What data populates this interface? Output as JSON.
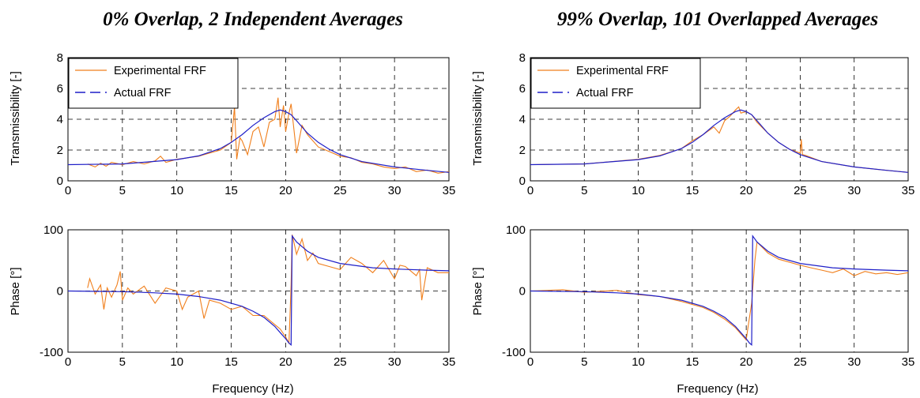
{
  "colors": {
    "experimental": "#f07f1c",
    "actual": "#1f1fc8",
    "grid": "#000000"
  },
  "chart_data": [
    {
      "id": "tr-left",
      "type": "line",
      "title": "0% Overlap, 2 Independent Averages",
      "xlabel": "",
      "ylabel": "Transmissibility [-]",
      "xlim": [
        0,
        35
      ],
      "ylim": [
        0,
        8
      ],
      "xticks": [
        0,
        5,
        10,
        15,
        20,
        25,
        30,
        35
      ],
      "yticks": [
        0,
        2,
        4,
        6,
        8
      ],
      "xtick_labels": [
        "0",
        "5",
        "10",
        "15",
        "20",
        "25",
        "30",
        "35"
      ],
      "ytick_labels": [
        "0",
        "2",
        "4",
        "6",
        "8"
      ],
      "grid": true,
      "legend": "top-left",
      "series": [
        {
          "name": "Experimental FRF",
          "style": "solid",
          "color": "#f07f1c",
          "x": [
            1.8,
            2.5,
            3,
            3.5,
            4,
            5,
            6,
            7,
            8,
            8.5,
            9,
            10,
            11,
            12,
            13,
            14,
            15,
            15.3,
            15.5,
            15.8,
            16,
            16.5,
            17,
            17.5,
            18,
            18.5,
            19,
            19.3,
            19.5,
            19.8,
            20,
            20.3,
            20.5,
            21,
            21.5,
            22,
            23,
            24,
            25,
            26,
            27,
            28,
            29,
            30,
            31,
            32,
            33,
            34,
            35
          ],
          "y": [
            1.1,
            0.9,
            1.15,
            0.95,
            1.2,
            1.05,
            1.25,
            1.1,
            1.3,
            1.6,
            1.2,
            1.4,
            1.5,
            1.6,
            1.8,
            2.0,
            2.5,
            4.8,
            1.4,
            2.8,
            2.6,
            1.7,
            3.2,
            3.5,
            2.2,
            3.8,
            4.0,
            5.4,
            3.5,
            4.9,
            3.2,
            4.4,
            5.0,
            1.8,
            3.6,
            3.0,
            2.2,
            1.9,
            1.6,
            1.5,
            1.2,
            1.1,
            0.9,
            0.8,
            0.9,
            0.6,
            0.7,
            0.5,
            0.6
          ]
        },
        {
          "name": "Actual FRF",
          "style": "dashed",
          "color": "#1f1fc8",
          "x": [
            0,
            5,
            10,
            12,
            14,
            15,
            16,
            17,
            18,
            19,
            19.5,
            20,
            20.5,
            21,
            22,
            23,
            24,
            25,
            27,
            30,
            33,
            35
          ],
          "y": [
            1.05,
            1.1,
            1.38,
            1.62,
            2.1,
            2.5,
            3.0,
            3.6,
            4.1,
            4.5,
            4.6,
            4.5,
            4.3,
            3.9,
            3.1,
            2.5,
            2.05,
            1.7,
            1.25,
            0.9,
            0.68,
            0.55
          ]
        }
      ]
    },
    {
      "id": "tr-right",
      "type": "line",
      "title": "99% Overlap, 101 Overlapped Averages",
      "xlabel": "",
      "ylabel": "Transmissibility [-]",
      "xlim": [
        0,
        35
      ],
      "ylim": [
        0,
        8
      ],
      "xticks": [
        0,
        5,
        10,
        15,
        20,
        25,
        30,
        35
      ],
      "yticks": [
        0,
        2,
        4,
        6,
        8
      ],
      "xtick_labels": [
        "0",
        "5",
        "10",
        "15",
        "20",
        "25",
        "30",
        "35"
      ],
      "ytick_labels": [
        "0",
        "2",
        "4",
        "6",
        "8"
      ],
      "grid": true,
      "legend": "top-left",
      "series": [
        {
          "name": "Experimental FRF",
          "style": "solid",
          "color": "#f07f1c",
          "x": [
            0,
            5,
            10,
            12,
            14,
            15,
            16,
            17,
            17.5,
            18,
            18.5,
            19,
            19.3,
            19.5,
            20,
            20.5,
            21,
            22,
            23,
            24,
            25,
            25.1,
            25.2,
            25.5,
            27,
            30,
            33,
            35
          ],
          "y": [
            1.05,
            1.1,
            1.4,
            1.65,
            2.1,
            2.6,
            3.0,
            3.5,
            3.1,
            3.9,
            4.2,
            4.6,
            4.8,
            4.4,
            4.5,
            4.3,
            3.8,
            3.1,
            2.5,
            2.05,
            1.8,
            2.7,
            1.7,
            1.65,
            1.25,
            0.9,
            0.68,
            0.55
          ]
        },
        {
          "name": "Actual FRF",
          "style": "dashed",
          "color": "#1f1fc8",
          "x": [
            0,
            5,
            10,
            12,
            14,
            15,
            16,
            17,
            18,
            19,
            19.5,
            20,
            20.5,
            21,
            22,
            23,
            24,
            25,
            27,
            30,
            33,
            35
          ],
          "y": [
            1.05,
            1.1,
            1.38,
            1.62,
            2.1,
            2.5,
            3.0,
            3.6,
            4.1,
            4.5,
            4.6,
            4.5,
            4.3,
            3.9,
            3.1,
            2.5,
            2.05,
            1.7,
            1.25,
            0.9,
            0.68,
            0.55
          ]
        }
      ]
    },
    {
      "id": "ph-left",
      "type": "line",
      "title": "",
      "xlabel": "Frequency (Hz)",
      "ylabel": "Phase [°]",
      "xlim": [
        0,
        35
      ],
      "ylim": [
        -100,
        100
      ],
      "xticks": [
        0,
        5,
        10,
        15,
        20,
        25,
        30,
        35
      ],
      "yticks": [
        -100,
        0,
        100
      ],
      "xtick_labels": [
        "0",
        "5",
        "10",
        "15",
        "20",
        "25",
        "30",
        "35"
      ],
      "ytick_labels": [
        "-100",
        "0",
        "100"
      ],
      "grid": true,
      "legend": "none",
      "series": [
        {
          "name": "Experimental FRF",
          "style": "solid",
          "color": "#f07f1c",
          "x": [
            1.8,
            2,
            2.5,
            3,
            3.3,
            3.6,
            4,
            4.5,
            4.8,
            5,
            5.5,
            6,
            7,
            8,
            9,
            10,
            10.5,
            11,
            12,
            12.5,
            13,
            14,
            15,
            16,
            17,
            18,
            19,
            19.5,
            20,
            20.3,
            20.5,
            20.6,
            21,
            21.5,
            22,
            22.5,
            23,
            24,
            25,
            26,
            27,
            28,
            29,
            30,
            30.5,
            31,
            32,
            32.3,
            32.5,
            33,
            34,
            35
          ],
          "y": [
            5,
            20,
            -5,
            10,
            -30,
            5,
            -10,
            10,
            32,
            -15,
            5,
            -5,
            8,
            -20,
            5,
            0,
            -30,
            -10,
            0,
            -45,
            -15,
            -20,
            -30,
            -25,
            -40,
            -40,
            -55,
            -62,
            -75,
            -85,
            10,
            92,
            60,
            85,
            50,
            62,
            45,
            40,
            35,
            55,
            45,
            30,
            50,
            20,
            42,
            40,
            25,
            35,
            -15,
            38,
            30,
            30
          ]
        },
        {
          "name": "Actual FRF",
          "style": "dashed",
          "color": "#1f1fc8",
          "x": [
            0,
            5,
            8,
            10,
            12,
            14,
            16,
            17,
            18,
            19,
            19.5,
            20,
            20.3,
            20.5,
            20.6,
            21,
            22,
            23,
            25,
            28,
            30,
            33,
            35
          ],
          "y": [
            0,
            -1,
            -3,
            -5,
            -9,
            -15,
            -25,
            -33,
            -43,
            -58,
            -68,
            -78,
            -85,
            -88,
            90,
            80,
            65,
            55,
            45,
            38,
            36,
            34,
            33
          ]
        }
      ]
    },
    {
      "id": "ph-right",
      "type": "line",
      "title": "",
      "xlabel": "Frequency (Hz)",
      "ylabel": "Phase [°]",
      "xlim": [
        0,
        35
      ],
      "ylim": [
        -100,
        100
      ],
      "xticks": [
        0,
        5,
        10,
        15,
        20,
        25,
        30,
        35
      ],
      "yticks": [
        -100,
        0,
        100
      ],
      "xtick_labels": [
        "0",
        "5",
        "10",
        "15",
        "20",
        "25",
        "30",
        "35"
      ],
      "ytick_labels": [
        "-100",
        "0",
        "100"
      ],
      "grid": true,
      "legend": "none",
      "series": [
        {
          "name": "Experimental FRF",
          "style": "solid",
          "color": "#f07f1c",
          "x": [
            0,
            3,
            5,
            8,
            10,
            12,
            14,
            16,
            17,
            18,
            19,
            19.5,
            20,
            20.2,
            20.5,
            20.8,
            21,
            22,
            23,
            25,
            26,
            27,
            28,
            29,
            30,
            31,
            32,
            33,
            34,
            35
          ],
          "y": [
            0,
            2,
            -2,
            1,
            -6,
            -9,
            -17,
            -27,
            -35,
            -46,
            -60,
            -70,
            -80,
            -55,
            -20,
            50,
            80,
            62,
            52,
            42,
            38,
            34,
            30,
            36,
            25,
            32,
            28,
            30,
            27,
            30
          ]
        },
        {
          "name": "Actual FRF",
          "style": "dashed",
          "color": "#1f1fc8",
          "x": [
            0,
            5,
            8,
            10,
            12,
            14,
            16,
            17,
            18,
            19,
            19.5,
            20,
            20.3,
            20.5,
            20.6,
            21,
            22,
            23,
            25,
            28,
            30,
            33,
            35
          ],
          "y": [
            0,
            -1,
            -3,
            -5,
            -9,
            -15,
            -25,
            -33,
            -43,
            -58,
            -68,
            -78,
            -85,
            -88,
            90,
            80,
            65,
            55,
            45,
            38,
            36,
            34,
            33
          ]
        }
      ]
    }
  ]
}
